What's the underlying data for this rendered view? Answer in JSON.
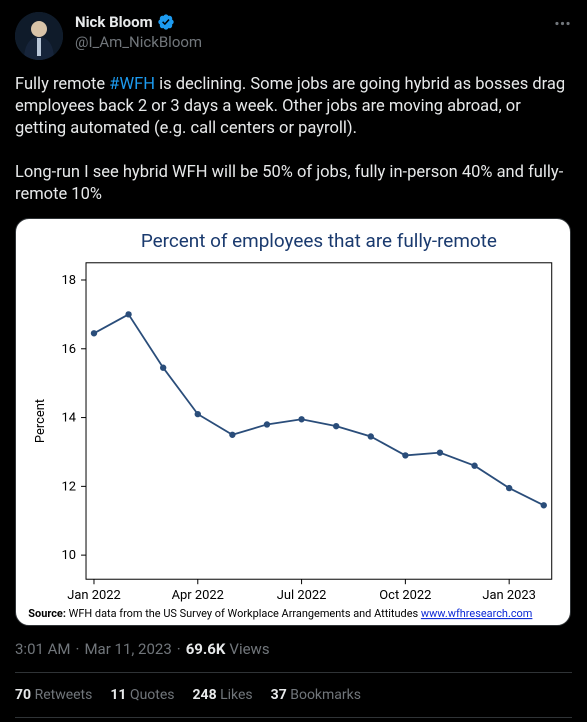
{
  "author": {
    "name": "Nick Bloom",
    "handle": "@I_Am_NickBloom",
    "verified": true
  },
  "body": {
    "para1_pre": "Fully remote ",
    "para1_tag": "#WFH",
    "para1_post": " is declining. Some jobs are going hybrid as bosses drag employees back 2 or 3 days a week. Other jobs are moving abroad, or getting automated (e.g. call centers or payroll).",
    "para2": "Long-run I see hybrid WFH will be 50% of jobs, fully in-person 40% and fully-remote 10%"
  },
  "chart": {
    "type": "line",
    "title": "Percent of employees that are fully-remote",
    "ylabel": "Percent",
    "ylim": [
      9.3,
      18.5
    ],
    "yticks": [
      10,
      12,
      14,
      16,
      18
    ],
    "x_categories": [
      "Jan 2022",
      "Feb 2022",
      "Mar 2022",
      "Apr 2022",
      "May 2022",
      "Jun 2022",
      "Jul 2022",
      "Aug 2022",
      "Sep 2022",
      "Oct 2022",
      "Nov 2022",
      "Dec 2022",
      "Jan 2023",
      "Feb 2023"
    ],
    "x_tick_labels": [
      "Jan 2022",
      "Apr 2022",
      "Jul 2022",
      "Oct 2022",
      "Jan 2023"
    ],
    "x_tick_indices": [
      0,
      3,
      6,
      9,
      12
    ],
    "values": [
      16.45,
      17.0,
      15.45,
      14.1,
      13.5,
      13.8,
      13.95,
      13.75,
      13.45,
      12.9,
      12.98,
      12.6,
      11.95,
      11.45
    ],
    "line_color": "#2a4d7a",
    "marker_color": "#2a4d7a",
    "marker_size": 3.2,
    "line_width": 1.8,
    "background_color": "#ffffff",
    "axis_color": "#000000",
    "title_color": "#1a3a6e",
    "title_fontsize": 19,
    "label_fontsize": 13,
    "source_prefix": "Source:",
    "source_text": " WFH data from the US Survey of Workplace Arrangements and Attitudes ",
    "source_link": "www.wfhresearch.com"
  },
  "meta": {
    "time": "3:01 AM",
    "date": "Mar 11, 2023",
    "views_count": "69.6K",
    "views_label": "Views"
  },
  "stats": {
    "retweets_count": "70",
    "retweets_label": "Retweets",
    "quotes_count": "11",
    "quotes_label": "Quotes",
    "likes_count": "248",
    "likes_label": "Likes",
    "bookmarks_count": "37",
    "bookmarks_label": "Bookmarks"
  }
}
